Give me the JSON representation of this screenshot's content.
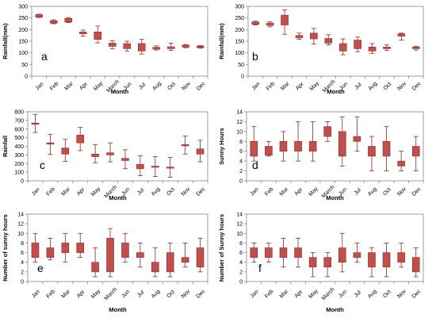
{
  "colors": {
    "box": "#c0504d",
    "box_edge": "#8b2b28",
    "whisker": "#8b2b28",
    "axis": "#888888",
    "grid": "#d9d9d9"
  },
  "chart_data": [
    {
      "type": "box",
      "panel_label": "a",
      "ylabel": "Rainfall(mm)",
      "xlabel": "Month",
      "ylim": [
        0,
        300
      ],
      "yticks": [
        0,
        50,
        100,
        150,
        200,
        250,
        300
      ],
      "categories": [
        "Jan",
        "Feb",
        "Mar",
        "Apr",
        "May",
        "March",
        "Jun",
        "Jul",
        "Aug",
        "Oct",
        "Nov",
        "Dec"
      ],
      "boxes": [
        {
          "min": 252,
          "q1": 254,
          "q3": 264,
          "max": 266
        },
        {
          "min": 225,
          "q1": 228,
          "q3": 238,
          "max": 242
        },
        {
          "min": 230,
          "q1": 233,
          "q3": 248,
          "max": 252
        },
        {
          "min": 172,
          "q1": 182,
          "q3": 190,
          "max": 198
        },
        {
          "min": 143,
          "q1": 158,
          "q3": 190,
          "max": 215
        },
        {
          "min": 118,
          "q1": 128,
          "q3": 142,
          "max": 152
        },
        {
          "min": 108,
          "q1": 118,
          "q3": 140,
          "max": 150
        },
        {
          "min": 95,
          "q1": 108,
          "q3": 140,
          "max": 158
        },
        {
          "min": 112,
          "q1": 116,
          "q3": 124,
          "max": 130
        },
        {
          "min": 110,
          "q1": 118,
          "q3": 126,
          "max": 142
        },
        {
          "min": 122,
          "q1": 125,
          "q3": 133,
          "max": 136
        },
        {
          "min": 120,
          "q1": 123,
          "q3": 129,
          "max": 132
        }
      ]
    },
    {
      "type": "box",
      "panel_label": "b",
      "ylabel": "Rainfall(mm)",
      "xlabel": "Month",
      "ylim": [
        0,
        300
      ],
      "yticks": [
        0,
        50,
        100,
        150,
        200,
        250,
        300
      ],
      "categories": [
        "Jan",
        "Feb",
        "Mar",
        "Apr",
        "May",
        "March",
        "Jun",
        "Jul",
        "Aug",
        "Oct",
        "Nov",
        "Dec"
      ],
      "boxes": [
        {
          "min": 220,
          "q1": 223,
          "q3": 233,
          "max": 236
        },
        {
          "min": 212,
          "q1": 218,
          "q3": 228,
          "max": 234
        },
        {
          "min": 180,
          "q1": 220,
          "q3": 262,
          "max": 285
        },
        {
          "min": 158,
          "q1": 165,
          "q3": 175,
          "max": 185
        },
        {
          "min": 138,
          "q1": 160,
          "q3": 185,
          "max": 205
        },
        {
          "min": 135,
          "q1": 142,
          "q3": 162,
          "max": 178
        },
        {
          "min": 92,
          "q1": 108,
          "q3": 140,
          "max": 160
        },
        {
          "min": 105,
          "q1": 118,
          "q3": 155,
          "max": 168
        },
        {
          "min": 98,
          "q1": 108,
          "q3": 125,
          "max": 140
        },
        {
          "min": 110,
          "q1": 118,
          "q3": 125,
          "max": 135
        },
        {
          "min": 155,
          "q1": 172,
          "q3": 182,
          "max": 185
        },
        {
          "min": 112,
          "q1": 118,
          "q3": 125,
          "max": 128
        }
      ]
    },
    {
      "type": "box",
      "panel_label": "c",
      "ylabel": "Rainfall",
      "xlabel": "Month",
      "ylim": [
        0,
        800
      ],
      "yticks": [
        0,
        100,
        200,
        300,
        400,
        500,
        600,
        700,
        800
      ],
      "categories": [
        "Jan",
        "Feb",
        "Mar",
        "Apr",
        "May",
        "March",
        "Jun",
        "Jul",
        "Aug",
        "Oct",
        "Nov",
        "Dec"
      ],
      "boxes": [
        {
          "min": 560,
          "q1": 655,
          "q3": 670,
          "max": 770
        },
        {
          "min": 305,
          "q1": 425,
          "q3": 440,
          "max": 540
        },
        {
          "min": 225,
          "q1": 310,
          "q3": 380,
          "max": 480
        },
        {
          "min": 350,
          "q1": 440,
          "q3": 530,
          "max": 620
        },
        {
          "min": 210,
          "q1": 280,
          "q3": 310,
          "max": 420
        },
        {
          "min": 220,
          "q1": 300,
          "q3": 325,
          "max": 440
        },
        {
          "min": 140,
          "q1": 235,
          "q3": 260,
          "max": 360
        },
        {
          "min": 60,
          "q1": 140,
          "q3": 190,
          "max": 290
        },
        {
          "min": 50,
          "q1": 160,
          "q3": 170,
          "max": 280
        },
        {
          "min": 40,
          "q1": 150,
          "q3": 160,
          "max": 270
        },
        {
          "min": 310,
          "q1": 405,
          "q3": 420,
          "max": 520
        },
        {
          "min": 220,
          "q1": 310,
          "q3": 370,
          "max": 470
        }
      ]
    },
    {
      "type": "box",
      "panel_label": "d",
      "ylabel": "Sunny Hours",
      "xlabel": "Month",
      "ylim": [
        0,
        14
      ],
      "yticks": [
        0,
        2,
        4,
        6,
        8,
        10,
        12,
        14
      ],
      "categories": [
        "Jan",
        "Feb",
        "Mar",
        "Apr",
        "May",
        "March",
        "Jun",
        "Jul",
        "Aug",
        "Oct",
        "Nov",
        "Dec"
      ],
      "boxes": [
        {
          "min": 4,
          "q1": 5,
          "q3": 8,
          "max": 11
        },
        {
          "min": 5,
          "q1": 5.2,
          "q3": 7,
          "max": 8
        },
        {
          "min": 4,
          "q1": 6,
          "q3": 8,
          "max": 10
        },
        {
          "min": 4,
          "q1": 6,
          "q3": 8,
          "max": 12
        },
        {
          "min": 4,
          "q1": 6,
          "q3": 8,
          "max": 12
        },
        {
          "min": 8,
          "q1": 9,
          "q3": 11,
          "max": 12
        },
        {
          "min": 3,
          "q1": 5,
          "q3": 10,
          "max": 13
        },
        {
          "min": 6,
          "q1": 8,
          "q3": 9,
          "max": 13
        },
        {
          "min": 2,
          "q1": 5,
          "q3": 7,
          "max": 9
        },
        {
          "min": 2,
          "q1": 5,
          "q3": 8,
          "max": 11
        },
        {
          "min": 2,
          "q1": 3,
          "q3": 4,
          "max": 6
        },
        {
          "min": 2,
          "q1": 5,
          "q3": 7,
          "max": 9
        }
      ]
    },
    {
      "type": "box",
      "panel_label": "e",
      "ylabel": "Number of sunny hours",
      "xlabel": "Month",
      "ylim": [
        0,
        14
      ],
      "yticks": [
        0,
        2,
        4,
        6,
        8,
        10,
        12,
        14
      ],
      "categories": [
        "Jan",
        "Feb",
        "Mar",
        "Apr",
        "May",
        "March",
        "Jun",
        "Jul",
        "Aug",
        "Oct",
        "Nov",
        "Dec"
      ],
      "boxes": [
        {
          "min": 4,
          "q1": 5,
          "q3": 8,
          "max": 10
        },
        {
          "min": 4.5,
          "q1": 5,
          "q3": 7,
          "max": 9
        },
        {
          "min": 4,
          "q1": 6,
          "q3": 8,
          "max": 10
        },
        {
          "min": 5,
          "q1": 6,
          "q3": 8,
          "max": 10
        },
        {
          "min": 1,
          "q1": 2,
          "q3": 4,
          "max": 7
        },
        {
          "min": 1,
          "q1": 2,
          "q3": 9,
          "max": 11
        },
        {
          "min": 4,
          "q1": 5,
          "q3": 8,
          "max": 10
        },
        {
          "min": 3,
          "q1": 5,
          "q3": 6,
          "max": 8
        },
        {
          "min": 1,
          "q1": 2,
          "q3": 4,
          "max": 7
        },
        {
          "min": 1,
          "q1": 2,
          "q3": 6,
          "max": 8
        },
        {
          "min": 3,
          "q1": 4,
          "q3": 5,
          "max": 8
        },
        {
          "min": 2,
          "q1": 3,
          "q3": 7,
          "max": 9
        }
      ]
    },
    {
      "type": "box",
      "panel_label": "f",
      "ylabel": "Number of Sunny hours",
      "xlabel": "Month",
      "ylim": [
        0,
        14
      ],
      "yticks": [
        0,
        2,
        4,
        6,
        8,
        10,
        12,
        14
      ],
      "categories": [
        "Jan",
        "Feb",
        "Mar",
        "Apr",
        "May",
        "March",
        "Jun",
        "Jul",
        "Aug",
        "Oct",
        "Nov",
        "Dec"
      ],
      "boxes": [
        {
          "min": 4,
          "q1": 5,
          "q3": 7,
          "max": 8
        },
        {
          "min": 4,
          "q1": 5,
          "q3": 7,
          "max": 8
        },
        {
          "min": 3,
          "q1": 5,
          "q3": 7,
          "max": 9
        },
        {
          "min": 3,
          "q1": 5,
          "q3": 7,
          "max": 9
        },
        {
          "min": 1,
          "q1": 3,
          "q3": 5,
          "max": 6
        },
        {
          "min": 1,
          "q1": 3,
          "q3": 5,
          "max": 6
        },
        {
          "min": 2,
          "q1": 4,
          "q3": 7,
          "max": 10
        },
        {
          "min": 4,
          "q1": 5,
          "q3": 6,
          "max": 8
        },
        {
          "min": 1,
          "q1": 3,
          "q3": 6,
          "max": 7
        },
        {
          "min": 1,
          "q1": 3,
          "q3": 6,
          "max": 8
        },
        {
          "min": 3,
          "q1": 4,
          "q3": 6,
          "max": 8
        },
        {
          "min": 1,
          "q1": 2,
          "q3": 5,
          "max": 7
        }
      ]
    }
  ]
}
